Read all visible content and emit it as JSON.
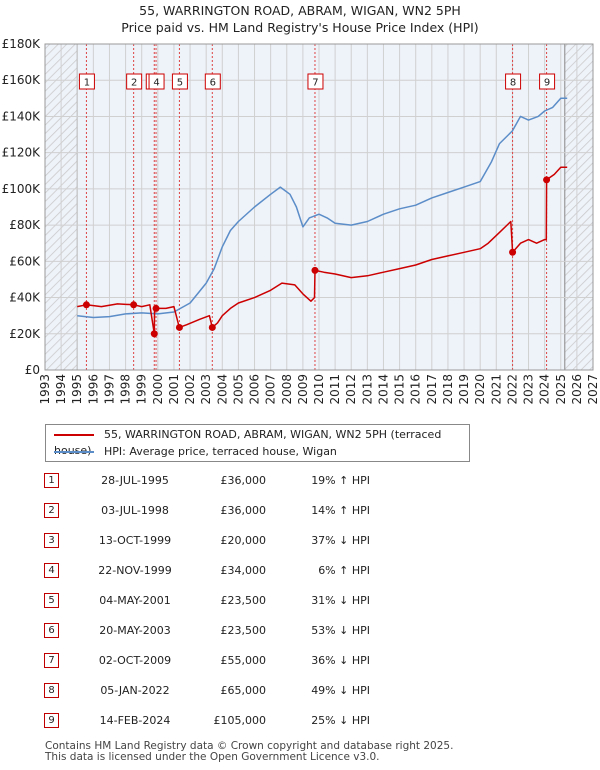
{
  "chart_data": {
    "type": "line",
    "title": "55, WARRINGTON ROAD, ABRAM, WIGAN, WN2 5PH",
    "subtitle": "Price paid vs. HM Land Registry's House Price Index (HPI)",
    "ylim": [
      0,
      180000
    ],
    "xlim": [
      1993,
      2027
    ],
    "y_ticks": [
      {
        "value": 0,
        "label": "£0"
      },
      {
        "value": 20000,
        "label": "£20K"
      },
      {
        "value": 40000,
        "label": "£40K"
      },
      {
        "value": 60000,
        "label": "£60K"
      },
      {
        "value": 80000,
        "label": "£80K"
      },
      {
        "value": 100000,
        "label": "£100K"
      },
      {
        "value": 120000,
        "label": "£120K"
      },
      {
        "value": 140000,
        "label": "£140K"
      },
      {
        "value": 160000,
        "label": "£160K"
      },
      {
        "value": 180000,
        "label": "£180K"
      }
    ],
    "x_ticks": [
      "1993",
      "1994",
      "1995",
      "1996",
      "1997",
      "1998",
      "1999",
      "2000",
      "2001",
      "2002",
      "2003",
      "2004",
      "2005",
      "2006",
      "2007",
      "2008",
      "2009",
      "2010",
      "2011",
      "2012",
      "2013",
      "2014",
      "2015",
      "2016",
      "2017",
      "2018",
      "2019",
      "2020",
      "2021",
      "2022",
      "2023",
      "2024",
      "2025",
      "2026",
      "2027"
    ],
    "hatched_ranges": [
      [
        1993,
        1995.0
      ],
      [
        2025.25,
        2027
      ]
    ],
    "series": [
      {
        "name": "55, WARRINGTON ROAD, ABRAM, WIGAN, WN2 5PH (terraced house)",
        "color": "#cc0000",
        "points": [
          [
            1995.0,
            35000
          ],
          [
            1995.57,
            36000
          ],
          [
            1996.5,
            35000
          ],
          [
            1997.5,
            36500
          ],
          [
            1998.5,
            36000
          ],
          [
            1999.0,
            35000
          ],
          [
            1999.5,
            36000
          ],
          [
            1999.78,
            20000
          ],
          [
            1999.8,
            34000
          ],
          [
            2000.5,
            34000
          ],
          [
            2001.0,
            35000
          ],
          [
            2001.33,
            23500
          ],
          [
            2001.8,
            25000
          ],
          [
            2002.6,
            28000
          ],
          [
            2003.2,
            30000
          ],
          [
            2003.38,
            23500
          ],
          [
            2003.7,
            26000
          ],
          [
            2004.0,
            30000
          ],
          [
            2004.5,
            34000
          ],
          [
            2005.0,
            37000
          ],
          [
            2006.0,
            40000
          ],
          [
            2007.0,
            44000
          ],
          [
            2007.7,
            48000
          ],
          [
            2008.5,
            47000
          ],
          [
            2009.0,
            42000
          ],
          [
            2009.5,
            38000
          ],
          [
            2009.72,
            40000
          ],
          [
            2009.75,
            55000
          ],
          [
            2010.3,
            54000
          ],
          [
            2011.0,
            53000
          ],
          [
            2012.0,
            51000
          ],
          [
            2013.0,
            52000
          ],
          [
            2014.0,
            54000
          ],
          [
            2015.0,
            56000
          ],
          [
            2016.0,
            58000
          ],
          [
            2017.0,
            61000
          ],
          [
            2018.0,
            63000
          ],
          [
            2019.0,
            65000
          ],
          [
            2020.0,
            67000
          ],
          [
            2020.5,
            70000
          ],
          [
            2021.2,
            76000
          ],
          [
            2021.9,
            82000
          ],
          [
            2022.01,
            65000
          ],
          [
            2022.5,
            70000
          ],
          [
            2023.0,
            72000
          ],
          [
            2023.5,
            70000
          ],
          [
            2024.0,
            72000
          ],
          [
            2024.1,
            72000
          ],
          [
            2024.12,
            105000
          ],
          [
            2024.6,
            108000
          ],
          [
            2025.0,
            112000
          ],
          [
            2025.4,
            112000
          ]
        ]
      },
      {
        "name": "HPI: Average price, terraced house, Wigan",
        "color": "#5b8dc8",
        "points": [
          [
            1995.0,
            30000
          ],
          [
            1996.0,
            29000
          ],
          [
            1997.0,
            29500
          ],
          [
            1998.0,
            31000
          ],
          [
            1999.0,
            31500
          ],
          [
            2000.0,
            31000
          ],
          [
            2001.0,
            32000
          ],
          [
            2002.0,
            37000
          ],
          [
            2003.0,
            48000
          ],
          [
            2003.5,
            56000
          ],
          [
            2004.0,
            68000
          ],
          [
            2004.5,
            77000
          ],
          [
            2005.0,
            82000
          ],
          [
            2006.0,
            90000
          ],
          [
            2007.0,
            97000
          ],
          [
            2007.6,
            101000
          ],
          [
            2008.2,
            97000
          ],
          [
            2008.6,
            90000
          ],
          [
            2009.0,
            79000
          ],
          [
            2009.4,
            84000
          ],
          [
            2010.0,
            86000
          ],
          [
            2010.5,
            84000
          ],
          [
            2011.0,
            81000
          ],
          [
            2012.0,
            80000
          ],
          [
            2013.0,
            82000
          ],
          [
            2014.0,
            86000
          ],
          [
            2015.0,
            89000
          ],
          [
            2016.0,
            91000
          ],
          [
            2017.0,
            95000
          ],
          [
            2018.0,
            98000
          ],
          [
            2019.0,
            101000
          ],
          [
            2020.0,
            104000
          ],
          [
            2020.7,
            115000
          ],
          [
            2021.2,
            125000
          ],
          [
            2022.0,
            132000
          ],
          [
            2022.5,
            140000
          ],
          [
            2023.0,
            138000
          ],
          [
            2023.6,
            140000
          ],
          [
            2024.0,
            143000
          ],
          [
            2024.5,
            145000
          ],
          [
            2025.0,
            150000
          ],
          [
            2025.4,
            150000
          ]
        ]
      }
    ],
    "sales": [
      {
        "id": "1",
        "x": 1995.57,
        "price": 36000,
        "date": "28-JUL-1995",
        "price_label": "£36,000",
        "hpi": "19% ↑ HPI"
      },
      {
        "id": "2",
        "x": 1998.5,
        "price": 36000,
        "date": "03-JUL-1998",
        "price_label": "£36,000",
        "hpi": "14% ↑ HPI"
      },
      {
        "id": "3",
        "x": 1999.78,
        "price": 20000,
        "date": "13-OCT-1999",
        "price_label": "£20,000",
        "hpi": "37% ↓ HPI"
      },
      {
        "id": "4",
        "x": 1999.89,
        "price": 34000,
        "date": "22-NOV-1999",
        "price_label": "£34,000",
        "hpi": "6% ↑ HPI"
      },
      {
        "id": "5",
        "x": 2001.34,
        "price": 23500,
        "date": "04-MAY-2001",
        "price_label": "£23,500",
        "hpi": "31% ↓ HPI"
      },
      {
        "id": "6",
        "x": 2003.38,
        "price": 23500,
        "date": "20-MAY-2003",
        "price_label": "£23,500",
        "hpi": "53% ↓ HPI"
      },
      {
        "id": "7",
        "x": 2009.75,
        "price": 55000,
        "date": "02-OCT-2009",
        "price_label": "£55,000",
        "hpi": "36% ↓ HPI"
      },
      {
        "id": "8",
        "x": 2022.01,
        "price": 65000,
        "date": "05-JAN-2022",
        "price_label": "£65,000",
        "hpi": "49% ↓ HPI"
      },
      {
        "id": "9",
        "x": 2024.12,
        "price": 105000,
        "date": "14-FEB-2024",
        "price_label": "£105,000",
        "hpi": "25% ↓ HPI"
      }
    ]
  },
  "legend": {
    "property_label": "55, WARRINGTON ROAD, ABRAM, WIGAN, WN2 5PH (terraced house)",
    "hpi_label": "HPI: Average price, terraced house, Wigan"
  },
  "footer": {
    "line1": "Contains HM Land Registry data © Crown copyright and database right 2025.",
    "line2": "This data is licensed under the Open Government Licence v3.0."
  },
  "colors": {
    "property": "#cc0000",
    "hpi": "#5b8dc8",
    "grid": "#d0d0d0",
    "hatch": "#c8c8c8"
  }
}
